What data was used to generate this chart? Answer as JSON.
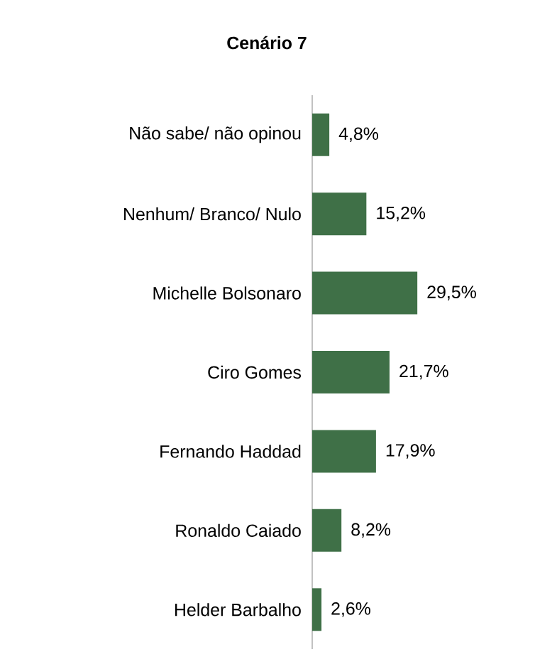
{
  "chart_data": {
    "type": "bar",
    "orientation": "horizontal",
    "title": "Cenário 7",
    "categories": [
      "Não sabe/ não opinou",
      "Nenhum/ Branco/ Nulo",
      "Michelle Bolsonaro",
      "Ciro Gomes",
      "Fernando Haddad",
      "Ronaldo Caiado",
      "Helder Barbalho"
    ],
    "values": [
      4.8,
      15.2,
      29.5,
      21.7,
      17.9,
      8.2,
      2.6
    ],
    "value_labels": [
      "4,8%",
      "15,2%",
      "29,5%",
      "21,7%",
      "17,9%",
      "8,2%",
      "2,6%"
    ],
    "color": "#3f7047"
  }
}
